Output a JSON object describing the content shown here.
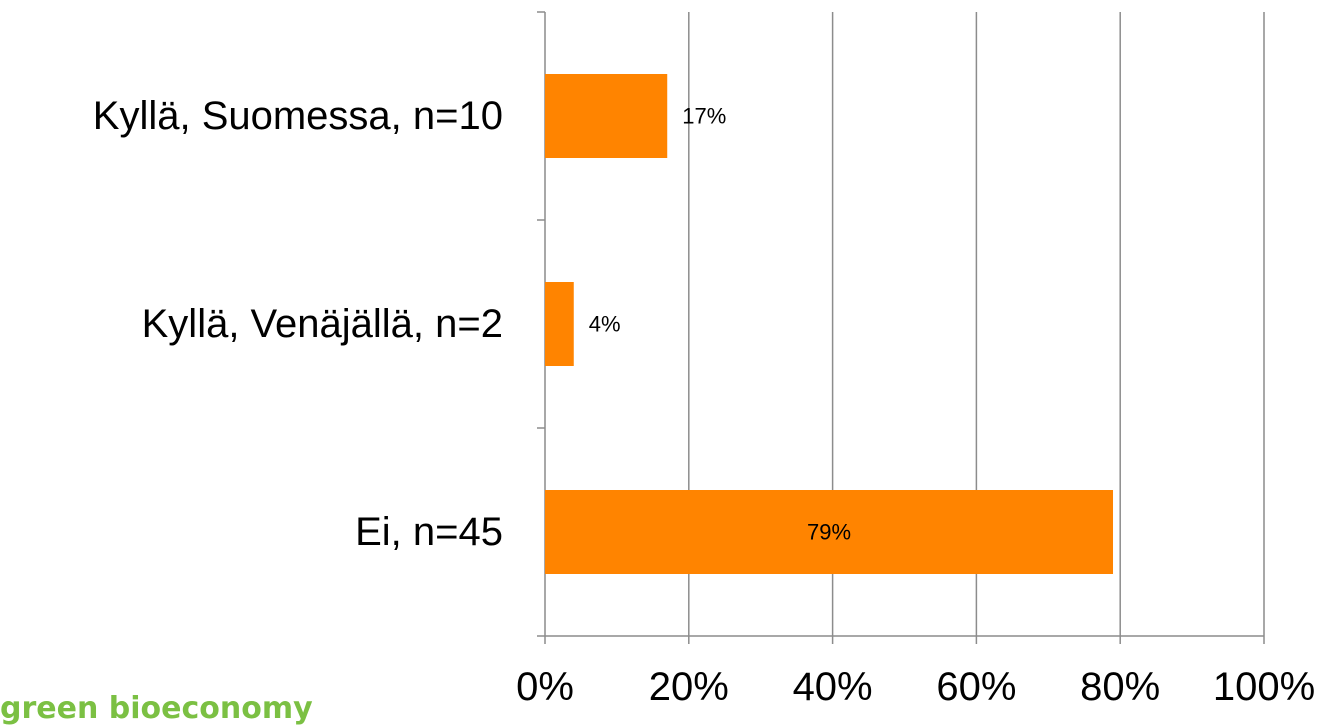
{
  "chart_data": {
    "type": "bar",
    "orientation": "horizontal",
    "categories": [
      "Kyllä, Suomessa, n=10",
      "Kyllä, Venäjällä, n=2",
      "Ei, n=45"
    ],
    "values": [
      17,
      4,
      79
    ],
    "data_labels": [
      "17%",
      "4%",
      "79%"
    ],
    "xlim": [
      0,
      100
    ],
    "x_ticks": [
      "0%",
      "20%",
      "40%",
      "60%",
      "80%",
      "100%"
    ],
    "x_tick_values": [
      0,
      20,
      40,
      60,
      80,
      100
    ],
    "grid": "vertical",
    "legend": "none",
    "colors": {
      "bar": "#ff8400",
      "grid": "#8c8c8c",
      "axis": "#8c8c8c"
    }
  },
  "footer": {
    "text": "green bioeconomy",
    "color": "#7bc043"
  }
}
